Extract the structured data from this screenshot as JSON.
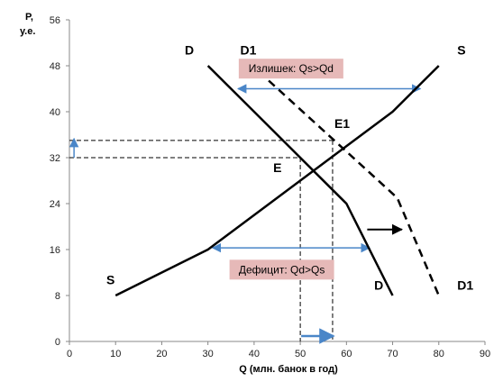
{
  "chart_data": {
    "type": "line",
    "xlabel": "Q (млн. банок в год)",
    "ylabel_line1": "P,",
    "ylabel_line2": "у.е.",
    "xlim": [
      0,
      90
    ],
    "ylim": [
      0,
      56
    ],
    "xticks": [
      0,
      10,
      20,
      30,
      40,
      50,
      60,
      70,
      80,
      90
    ],
    "yticks": [
      0,
      8,
      16,
      24,
      32,
      40,
      48,
      56
    ],
    "colors": {
      "curve": "#000000",
      "guide": "#000000",
      "arrow": "#4a86c8",
      "box": "#e6b9b8"
    },
    "series": [
      {
        "name": "S",
        "style": "solid",
        "x": [
          10,
          30,
          70,
          80
        ],
        "y": [
          8,
          16,
          40,
          48
        ]
      },
      {
        "name": "D",
        "style": "solid",
        "x": [
          30,
          60,
          70
        ],
        "y": [
          48,
          24,
          8
        ]
      },
      {
        "name": "D1",
        "style": "dashed",
        "x": [
          41,
          71,
          80
        ],
        "y": [
          47,
          25,
          8
        ]
      }
    ],
    "points": [
      {
        "label": "E",
        "x": 50,
        "y": 32
      },
      {
        "label": "E1",
        "x": 57,
        "y": 35
      }
    ],
    "curve_labels": [
      {
        "text": "S",
        "x": 8,
        "y": 10
      },
      {
        "text": "S",
        "x": 84,
        "y": 50
      },
      {
        "text": "D",
        "x": 25,
        "y": 50
      },
      {
        "text": "D",
        "x": 66,
        "y": 9
      },
      {
        "text": "D1",
        "x": 37,
        "y": 50
      },
      {
        "text": "D1",
        "x": 84,
        "y": 9
      }
    ],
    "annotations": [
      {
        "text": "Излишек: Qs>Qd",
        "x": 48,
        "y": 47.5
      },
      {
        "text": "Дефицит: Qd>Qs",
        "x": 46,
        "y": 12.5
      }
    ]
  }
}
